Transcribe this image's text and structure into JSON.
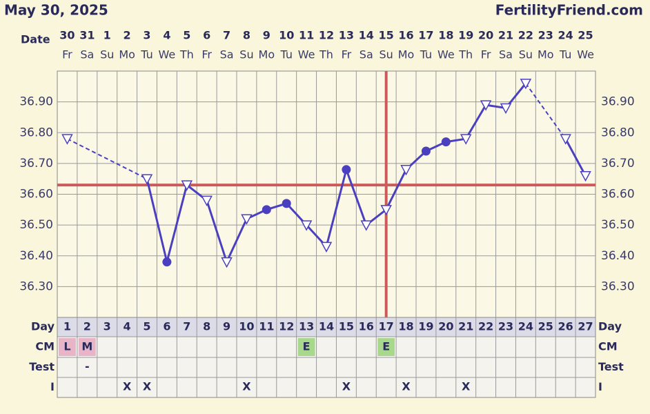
{
  "header": {
    "title": "May 30, 2025",
    "site": "FertilityFriend.com"
  },
  "chart_data": {
    "type": "line",
    "date_label": "Date",
    "dates": [
      "30",
      "31",
      "1",
      "2",
      "3",
      "4",
      "5",
      "6",
      "7",
      "8",
      "9",
      "10",
      "11",
      "12",
      "13",
      "14",
      "15",
      "16",
      "17",
      "18",
      "19",
      "20",
      "21",
      "22",
      "23",
      "24",
      "25"
    ],
    "weekdays": [
      "Fr",
      "Sa",
      "Su",
      "Mo",
      "Tu",
      "We",
      "Th",
      "Fr",
      "Sa",
      "Su",
      "Mo",
      "Tu",
      "We",
      "Th",
      "Fr",
      "Sa",
      "Su",
      "Mo",
      "Tu",
      "We",
      "Th",
      "Fr",
      "Sa",
      "Su",
      "Mo",
      "Tu",
      "We"
    ],
    "categories": [
      1,
      2,
      3,
      4,
      5,
      6,
      7,
      8,
      9,
      10,
      11,
      12,
      13,
      14,
      15,
      16,
      17,
      18,
      19,
      20,
      21,
      22,
      23,
      24,
      25,
      26,
      27
    ],
    "series": [
      {
        "color": "#4a3fbf",
        "values": [
          36.78,
          null,
          null,
          null,
          36.65,
          36.38,
          36.63,
          36.58,
          36.38,
          36.52,
          36.55,
          36.57,
          36.5,
          36.43,
          36.68,
          36.5,
          36.55,
          36.68,
          36.74,
          36.77,
          36.78,
          36.89,
          36.88,
          36.96,
          null,
          36.78,
          36.66
        ],
        "markers": [
          "triangle",
          null,
          null,
          null,
          "triangle",
          "circle",
          "triangle",
          "triangle",
          "triangle",
          "triangle",
          "circle",
          "circle",
          "triangle",
          "triangle",
          "circle",
          "triangle",
          "triangle",
          "triangle",
          "circle",
          "circle",
          "triangle",
          "triangle",
          "triangle",
          "triangle",
          null,
          "triangle",
          "triangle"
        ]
      }
    ],
    "ylim": [
      36.2,
      37.0
    ],
    "yticks": [
      {
        "value": 36.3,
        "label": "36.30"
      },
      {
        "value": 36.4,
        "label": "36.40"
      },
      {
        "value": 36.5,
        "label": "36.50"
      },
      {
        "value": 36.6,
        "label": "36.60"
      },
      {
        "value": 36.7,
        "label": "36.70"
      },
      {
        "value": 36.8,
        "label": "36.80"
      },
      {
        "value": 36.9,
        "label": "36.90"
      }
    ],
    "grid": true,
    "coverline": 36.63,
    "coverline_color": "#cc5a5a",
    "ovulation_day": 17,
    "rows": {
      "day_label": "Day",
      "cm_label": "CM",
      "cm": [
        "L",
        "M",
        null,
        null,
        null,
        null,
        null,
        null,
        null,
        null,
        null,
        null,
        "E",
        null,
        null,
        null,
        "E",
        null,
        null,
        null,
        null,
        null,
        null,
        null,
        null,
        null,
        null
      ],
      "test_label": "Test",
      "test": [
        null,
        "-",
        null,
        null,
        null,
        null,
        null,
        null,
        null,
        null,
        null,
        null,
        null,
        null,
        null,
        null,
        null,
        null,
        null,
        null,
        null,
        null,
        null,
        null,
        null,
        null,
        null
      ],
      "i_label": "I",
      "intercourse": [
        null,
        null,
        null,
        "X",
        "X",
        null,
        null,
        null,
        null,
        "X",
        null,
        null,
        null,
        null,
        "X",
        null,
        null,
        "X",
        null,
        null,
        "X",
        null,
        null,
        null,
        null,
        null,
        null
      ]
    }
  }
}
